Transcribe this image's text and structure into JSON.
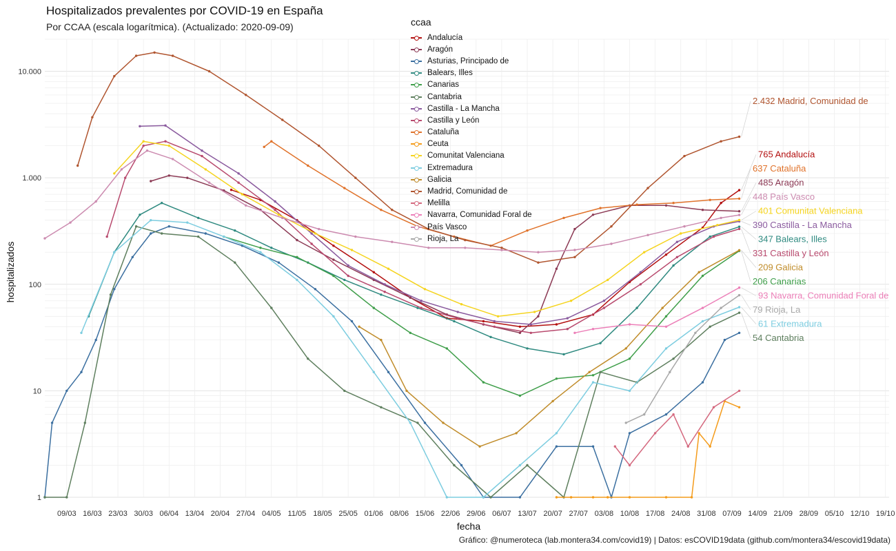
{
  "chart_data": {
    "type": "line",
    "title": "Hospitalizados prevalentes por COVID-19 en España",
    "subtitle": "Por CCAA (escala logarítmica). (Actualizado: 2020-09-09)",
    "xlabel": "fecha",
    "ylabel": "hospitalizados",
    "caption": "Gráfico: @numeroteca (lab.montera34.com/covid19) | Datos: esCOVID19data (github.com/montera34/escovid19data)",
    "legend_title": "ccaa",
    "y_scale": "log",
    "ylim": [
      1,
      20000
    ],
    "y_ticks": [
      1,
      10,
      100,
      1000,
      10000
    ],
    "y_tick_labels": [
      "1",
      "10",
      "100",
      "1.000",
      "10.000"
    ],
    "xlim": [
      "2020-03-03",
      "2020-10-20"
    ],
    "x_ticks": [
      "2020-03-09",
      "2020-03-16",
      "2020-03-23",
      "2020-03-30",
      "2020-04-06",
      "2020-04-13",
      "2020-04-20",
      "2020-04-27",
      "2020-05-04",
      "2020-05-11",
      "2020-05-18",
      "2020-05-25",
      "2020-06-01",
      "2020-06-08",
      "2020-06-15",
      "2020-06-22",
      "2020-06-29",
      "2020-07-06",
      "2020-07-13",
      "2020-07-20",
      "2020-07-27",
      "2020-08-03",
      "2020-08-10",
      "2020-08-17",
      "2020-08-24",
      "2020-08-31",
      "2020-09-07",
      "2020-09-14",
      "2020-09-21",
      "2020-09-28",
      "2020-10-05",
      "2020-10-12",
      "2020-10-19"
    ],
    "x_tick_labels": [
      "09/03",
      "16/03",
      "23/03",
      "30/03",
      "06/04",
      "13/04",
      "20/04",
      "27/04",
      "04/05",
      "11/05",
      "18/05",
      "25/05",
      "01/06",
      "08/06",
      "15/06",
      "22/06",
      "29/06",
      "06/07",
      "13/07",
      "20/07",
      "27/07",
      "03/08",
      "10/08",
      "17/08",
      "24/08",
      "31/08",
      "07/09",
      "14/09",
      "21/09",
      "28/09",
      "05/10",
      "12/10",
      "19/10"
    ],
    "legend_position": "top",
    "grid": true,
    "series": [
      {
        "name": "Andalucía",
        "color": "#b30f0f",
        "end_label": "765 Andalucía",
        "x": [
          "2020-04-23",
          "2020-05-01",
          "2020-05-11",
          "2020-05-21",
          "2020-06-01",
          "2020-06-11",
          "2020-06-21",
          "2020-07-01",
          "2020-07-11",
          "2020-07-21",
          "2020-07-31",
          "2020-08-10",
          "2020-08-20",
          "2020-08-30",
          "2020-09-04",
          "2020-09-09"
        ],
        "values": [
          770,
          620,
          400,
          230,
          130,
          75,
          48,
          45,
          40,
          42,
          52,
          105,
          190,
          340,
          580,
          765
        ]
      },
      {
        "name": "Aragón",
        "color": "#8c3a55",
        "end_label": "485 Aragón",
        "x": [
          "2020-04-01",
          "2020-04-06",
          "2020-04-11",
          "2020-04-21",
          "2020-05-01",
          "2020-05-11",
          "2020-05-21",
          "2020-06-01",
          "2020-06-11",
          "2020-06-21",
          "2020-07-01",
          "2020-07-11",
          "2020-07-16",
          "2020-07-21",
          "2020-07-26",
          "2020-07-31",
          "2020-08-10",
          "2020-08-20",
          "2020-08-30",
          "2020-09-09"
        ],
        "values": [
          930,
          1050,
          1000,
          760,
          500,
          260,
          170,
          110,
          75,
          52,
          42,
          35,
          50,
          140,
          330,
          450,
          550,
          550,
          500,
          485
        ]
      },
      {
        "name": "Asturias, Principado de",
        "color": "#3b6fa0",
        "end_label": "",
        "x": [
          "2020-03-03",
          "2020-03-05",
          "2020-03-09",
          "2020-03-13",
          "2020-03-17",
          "2020-03-22",
          "2020-03-27",
          "2020-04-01",
          "2020-04-06",
          "2020-04-16",
          "2020-04-26",
          "2020-05-06",
          "2020-05-16",
          "2020-05-26",
          "2020-06-05",
          "2020-06-15",
          "2020-06-25",
          "2020-07-01",
          "2020-07-11",
          "2020-07-21",
          "2020-07-31",
          "2020-08-05",
          "2020-08-10",
          "2020-08-20",
          "2020-08-30",
          "2020-09-05",
          "2020-09-09"
        ],
        "values": [
          1,
          5,
          10,
          15,
          30,
          90,
          180,
          300,
          350,
          300,
          230,
          160,
          90,
          45,
          15,
          5,
          2,
          1,
          1,
          3,
          3,
          1,
          4,
          6,
          12,
          30,
          35
        ]
      },
      {
        "name": "Balears, Illes",
        "color": "#2f8a80",
        "end_label": "347 Balears, Illes",
        "x": [
          "2020-03-15",
          "2020-03-22",
          "2020-03-29",
          "2020-04-04",
          "2020-04-14",
          "2020-04-24",
          "2020-05-04",
          "2020-05-14",
          "2020-05-24",
          "2020-06-03",
          "2020-06-13",
          "2020-06-23",
          "2020-07-03",
          "2020-07-13",
          "2020-07-23",
          "2020-08-02",
          "2020-08-12",
          "2020-08-22",
          "2020-09-01",
          "2020-09-09"
        ],
        "values": [
          50,
          200,
          450,
          580,
          420,
          320,
          220,
          160,
          110,
          80,
          60,
          45,
          32,
          25,
          22,
          28,
          60,
          150,
          280,
          347
        ]
      },
      {
        "name": "Canarias",
        "color": "#3f9e4a",
        "end_label": "206 Canarias",
        "x": [
          "2020-04-21",
          "2020-05-01",
          "2020-05-11",
          "2020-05-21",
          "2020-06-01",
          "2020-06-11",
          "2020-06-21",
          "2020-07-01",
          "2020-07-11",
          "2020-07-21",
          "2020-07-31",
          "2020-08-10",
          "2020-08-20",
          "2020-08-30",
          "2020-09-09"
        ],
        "values": [
          280,
          220,
          180,
          120,
          60,
          35,
          25,
          12,
          9,
          13,
          14,
          20,
          50,
          120,
          206
        ]
      },
      {
        "name": "Cantabria",
        "color": "#5e7f5e",
        "end_label": "54 Cantabria",
        "x": [
          "2020-03-03",
          "2020-03-09",
          "2020-03-14",
          "2020-03-21",
          "2020-03-28",
          "2020-04-04",
          "2020-04-14",
          "2020-04-24",
          "2020-05-04",
          "2020-05-14",
          "2020-05-24",
          "2020-06-03",
          "2020-06-13",
          "2020-06-23",
          "2020-07-03",
          "2020-07-13",
          "2020-07-23",
          "2020-08-02",
          "2020-08-12",
          "2020-08-22",
          "2020-09-01",
          "2020-09-09"
        ],
        "values": [
          1,
          1,
          5,
          80,
          350,
          300,
          280,
          160,
          60,
          20,
          10,
          7,
          5,
          2,
          1,
          2,
          1,
          15,
          12,
          20,
          40,
          54
        ]
      },
      {
        "name": "Castilla - La Mancha",
        "color": "#8a5a9e",
        "end_label": "390 Castilla - La Mancha",
        "x": [
          "2020-03-29",
          "2020-04-05",
          "2020-04-15",
          "2020-04-25",
          "2020-05-05",
          "2020-05-15",
          "2020-05-25",
          "2020-06-04",
          "2020-06-14",
          "2020-06-24",
          "2020-07-04",
          "2020-07-14",
          "2020-07-24",
          "2020-08-03",
          "2020-08-13",
          "2020-08-23",
          "2020-09-02",
          "2020-09-09"
        ],
        "values": [
          3050,
          3100,
          1800,
          1100,
          600,
          300,
          150,
          100,
          70,
          55,
          45,
          42,
          48,
          70,
          130,
          250,
          350,
          390
        ]
      },
      {
        "name": "Castilla y León",
        "color": "#b84a6e",
        "end_label": "331 Castilla y León",
        "x": [
          "2020-03-20",
          "2020-03-25",
          "2020-03-30",
          "2020-04-05",
          "2020-04-15",
          "2020-04-25",
          "2020-05-05",
          "2020-05-15",
          "2020-05-25",
          "2020-06-04",
          "2020-06-14",
          "2020-06-24",
          "2020-07-04",
          "2020-07-14",
          "2020-07-24",
          "2020-08-03",
          "2020-08-13",
          "2020-08-23",
          "2020-09-02",
          "2020-09-09"
        ],
        "values": [
          280,
          1000,
          2000,
          2200,
          1600,
          900,
          500,
          240,
          120,
          85,
          60,
          48,
          40,
          35,
          38,
          60,
          100,
          180,
          280,
          331
        ]
      },
      {
        "name": "Cataluña",
        "color": "#e0722a",
        "end_label": "637 Cataluña",
        "x": [
          "2020-05-02",
          "2020-05-04",
          "2020-05-14",
          "2020-05-24",
          "2020-06-03",
          "2020-06-13",
          "2020-06-23",
          "2020-07-03",
          "2020-07-13",
          "2020-07-23",
          "2020-08-02",
          "2020-08-12",
          "2020-08-22",
          "2020-09-01",
          "2020-09-09"
        ],
        "values": [
          1950,
          2200,
          1300,
          800,
          500,
          350,
          280,
          230,
          320,
          420,
          520,
          560,
          580,
          620,
          637
        ]
      },
      {
        "name": "Ceuta",
        "color": "#f49b1a",
        "end_label": "",
        "x": [
          "2020-07-21",
          "2020-07-25",
          "2020-07-31",
          "2020-08-04",
          "2020-08-10",
          "2020-08-20",
          "2020-08-27",
          "2020-08-29",
          "2020-09-01",
          "2020-09-05",
          "2020-09-09"
        ],
        "values": [
          1,
          1,
          1,
          1,
          1,
          1,
          1,
          4,
          3,
          8,
          7
        ]
      },
      {
        "name": "Comunitat Valenciana",
        "color": "#f5d41f",
        "end_label": "401 Comunitat Valenciana",
        "x": [
          "2020-03-22",
          "2020-03-30",
          "2020-04-06",
          "2020-04-16",
          "2020-04-26",
          "2020-05-06",
          "2020-05-16",
          "2020-05-26",
          "2020-06-05",
          "2020-06-15",
          "2020-06-25",
          "2020-07-05",
          "2020-07-15",
          "2020-07-25",
          "2020-08-04",
          "2020-08-14",
          "2020-08-24",
          "2020-09-03",
          "2020-09-09"
        ],
        "values": [
          1100,
          2200,
          2000,
          1200,
          700,
          450,
          300,
          210,
          140,
          90,
          65,
          50,
          55,
          70,
          110,
          200,
          300,
          360,
          401
        ]
      },
      {
        "name": "Extremadura",
        "color": "#7dcde0",
        "end_label": "61 Extremadura",
        "x": [
          "2020-03-13",
          "2020-03-22",
          "2020-04-01",
          "2020-04-11",
          "2020-04-21",
          "2020-05-01",
          "2020-05-11",
          "2020-05-21",
          "2020-06-01",
          "2020-06-11",
          "2020-06-21",
          "2020-07-01",
          "2020-07-11",
          "2020-07-21",
          "2020-07-31",
          "2020-08-10",
          "2020-08-20",
          "2020-08-30",
          "2020-09-09"
        ],
        "values": [
          35,
          200,
          400,
          380,
          280,
          200,
          110,
          50,
          15,
          5,
          1,
          1,
          2,
          4,
          12,
          10,
          25,
          45,
          61
        ]
      },
      {
        "name": "Galicia",
        "color": "#c08c2a",
        "end_label": "209 Galicia",
        "x": [
          "2020-05-28",
          "2020-06-03",
          "2020-06-10",
          "2020-06-20",
          "2020-06-30",
          "2020-07-10",
          "2020-07-20",
          "2020-07-30",
          "2020-08-09",
          "2020-08-19",
          "2020-08-29",
          "2020-09-09"
        ],
        "values": [
          40,
          30,
          10,
          5,
          3,
          4,
          8,
          15,
          25,
          60,
          130,
          209
        ]
      },
      {
        "name": "Madrid, Comunidad de",
        "color": "#b0552f",
        "end_label": "2.432 Madrid, Comunidad de",
        "x": [
          "2020-03-12",
          "2020-03-16",
          "2020-03-22",
          "2020-03-28",
          "2020-04-02",
          "2020-04-07",
          "2020-04-17",
          "2020-04-27",
          "2020-05-07",
          "2020-05-17",
          "2020-05-27",
          "2020-06-06",
          "2020-06-16",
          "2020-06-26",
          "2020-07-06",
          "2020-07-16",
          "2020-07-26",
          "2020-08-05",
          "2020-08-15",
          "2020-08-25",
          "2020-09-04",
          "2020-09-09"
        ],
        "values": [
          1300,
          3700,
          9000,
          14000,
          15000,
          14000,
          10000,
          6000,
          3500,
          2000,
          1000,
          500,
          330,
          260,
          220,
          160,
          180,
          350,
          800,
          1600,
          2200,
          2432
        ]
      },
      {
        "name": "Melilla",
        "color": "#d4687e",
        "end_label": "",
        "x": [
          "2020-08-06",
          "2020-08-10",
          "2020-08-17",
          "2020-08-22",
          "2020-08-26",
          "2020-09-02",
          "2020-09-09"
        ],
        "values": [
          3,
          2,
          4,
          6,
          3,
          7,
          10
        ]
      },
      {
        "name": "Navarra, Comunidad Foral de",
        "color": "#ec7fb8",
        "end_label": "93 Navarra, Comunidad Foral de",
        "x": [
          "2020-07-26",
          "2020-07-31",
          "2020-08-10",
          "2020-08-20",
          "2020-08-30",
          "2020-09-09"
        ],
        "values": [
          35,
          38,
          42,
          40,
          60,
          93
        ]
      },
      {
        "name": "País Vasco",
        "color": "#cc8bb0",
        "end_label": "448 País Vasco",
        "x": [
          "2020-03-03",
          "2020-03-10",
          "2020-03-17",
          "2020-03-24",
          "2020-03-31",
          "2020-04-07",
          "2020-04-17",
          "2020-04-27",
          "2020-05-07",
          "2020-05-17",
          "2020-05-27",
          "2020-06-06",
          "2020-06-16",
          "2020-06-26",
          "2020-07-06",
          "2020-07-16",
          "2020-07-26",
          "2020-08-05",
          "2020-08-15",
          "2020-08-25",
          "2020-09-04",
          "2020-09-09"
        ],
        "values": [
          270,
          380,
          600,
          1200,
          1800,
          1500,
          900,
          550,
          420,
          330,
          280,
          250,
          220,
          220,
          210,
          200,
          210,
          240,
          290,
          350,
          420,
          448
        ]
      },
      {
        "name": "Rioja, La",
        "color": "#a8a8a8",
        "end_label": "79 Rioja, La",
        "x": [
          "2020-08-09",
          "2020-08-14",
          "2020-08-21",
          "2020-08-28",
          "2020-09-04",
          "2020-09-09"
        ],
        "values": [
          5,
          6,
          15,
          35,
          60,
          79
        ]
      }
    ]
  }
}
